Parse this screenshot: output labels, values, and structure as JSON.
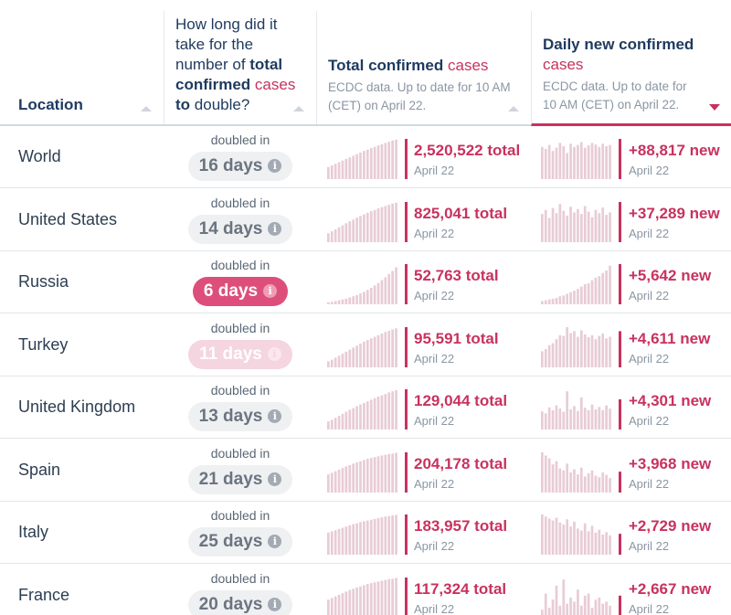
{
  "header": {
    "location": "Location",
    "doubling_pre": "How long did it take for the number of ",
    "doubling_bold1": "total confirmed",
    "doubling_pink": "cases",
    "doubling_bold2": "to",
    "doubling_post": "double?",
    "total_title": "Total confirmed",
    "total_title_pink": "cases",
    "total_sub": "ECDC data. Up to date for 10 AM (CET) on April 22.",
    "daily_title": "Daily new confirmed",
    "daily_title_pink": "cases",
    "daily_sub": "ECDC data. Up to date for 10 AM (CET) on April 22."
  },
  "doubled_label": "doubled in",
  "info_glyph": "i",
  "colors": {
    "accent": "#c8325f",
    "bar": "#e8ccd5",
    "bar_last": "#c8325f"
  },
  "rows": [
    {
      "location": "World",
      "doubling": "16 days",
      "severity": "normal",
      "total": "2,520,522 total",
      "total_date": "April 22",
      "daily": "+88,817 new",
      "daily_date": "April 22",
      "total_trend": [
        0.3,
        0.34,
        0.38,
        0.42,
        0.46,
        0.5,
        0.54,
        0.58,
        0.62,
        0.66,
        0.7,
        0.73,
        0.77,
        0.8,
        0.84,
        0.87,
        0.9,
        0.93,
        0.96,
        0.98,
        1.0
      ],
      "daily_trend": [
        0.8,
        0.75,
        0.85,
        0.7,
        0.78,
        0.9,
        0.82,
        0.65,
        0.88,
        0.8,
        0.85,
        0.92,
        0.78,
        0.84,
        0.9,
        0.86,
        0.8,
        0.88,
        0.82,
        0.85,
        1.0
      ]
    },
    {
      "location": "United States",
      "doubling": "14 days",
      "severity": "normal",
      "total": "825,041 total",
      "total_date": "April 22",
      "daily": "+37,289 new",
      "daily_date": "April 22",
      "total_trend": [
        0.22,
        0.27,
        0.32,
        0.37,
        0.42,
        0.47,
        0.52,
        0.56,
        0.61,
        0.65,
        0.69,
        0.73,
        0.77,
        0.8,
        0.84,
        0.87,
        0.9,
        0.93,
        0.96,
        0.98,
        1.0
      ],
      "daily_trend": [
        0.7,
        0.8,
        0.6,
        0.85,
        0.72,
        0.95,
        0.78,
        0.66,
        0.88,
        0.74,
        0.82,
        0.7,
        0.9,
        0.76,
        0.62,
        0.8,
        0.72,
        0.86,
        0.68,
        0.74,
        1.0
      ]
    },
    {
      "location": "Russia",
      "doubling": "6 days",
      "severity": "hot",
      "total": "52,763 total",
      "total_date": "April 22",
      "daily": "+5,642 new",
      "daily_date": "April 22",
      "total_trend": [
        0.05,
        0.06,
        0.08,
        0.1,
        0.12,
        0.14,
        0.17,
        0.2,
        0.23,
        0.27,
        0.31,
        0.36,
        0.41,
        0.47,
        0.53,
        0.6,
        0.67,
        0.75,
        0.83,
        0.92,
        1.0
      ],
      "daily_trend": [
        0.08,
        0.1,
        0.12,
        0.14,
        0.16,
        0.2,
        0.22,
        0.26,
        0.3,
        0.34,
        0.38,
        0.44,
        0.5,
        0.52,
        0.6,
        0.66,
        0.7,
        0.78,
        0.84,
        0.96,
        1.0
      ]
    },
    {
      "location": "Turkey",
      "doubling": "11 days",
      "severity": "warm",
      "total": "95,591 total",
      "total_date": "April 22",
      "daily": "+4,611 new",
      "daily_date": "April 22",
      "total_trend": [
        0.15,
        0.19,
        0.24,
        0.29,
        0.34,
        0.39,
        0.44,
        0.49,
        0.54,
        0.59,
        0.64,
        0.68,
        0.72,
        0.76,
        0.8,
        0.84,
        0.88,
        0.91,
        0.94,
        0.97,
        1.0
      ],
      "daily_trend": [
        0.4,
        0.45,
        0.55,
        0.6,
        0.7,
        0.8,
        0.78,
        1.0,
        0.85,
        0.9,
        0.76,
        0.92,
        0.82,
        0.75,
        0.8,
        0.7,
        0.78,
        0.84,
        0.72,
        0.76,
        0.9
      ]
    },
    {
      "location": "United Kingdom",
      "doubling": "13 days",
      "severity": "normal",
      "total": "129,044 total",
      "total_date": "April 22",
      "daily": "+4,301 new",
      "daily_date": "April 22",
      "total_trend": [
        0.2,
        0.24,
        0.29,
        0.34,
        0.39,
        0.44,
        0.49,
        0.53,
        0.58,
        0.62,
        0.66,
        0.7,
        0.74,
        0.78,
        0.82,
        0.85,
        0.88,
        0.92,
        0.95,
        0.98,
        1.0
      ],
      "daily_trend": [
        0.45,
        0.4,
        0.55,
        0.48,
        0.6,
        0.52,
        0.44,
        0.95,
        0.5,
        0.58,
        0.46,
        0.8,
        0.54,
        0.48,
        0.62,
        0.5,
        0.56,
        0.48,
        0.6,
        0.52,
        0.75
      ]
    },
    {
      "location": "Spain",
      "doubling": "21 days",
      "severity": "normal",
      "total": "204,178 total",
      "total_date": "April 22",
      "daily": "+3,968 new",
      "daily_date": "April 22",
      "total_trend": [
        0.45,
        0.49,
        0.53,
        0.57,
        0.61,
        0.65,
        0.68,
        0.72,
        0.75,
        0.78,
        0.81,
        0.84,
        0.86,
        0.88,
        0.9,
        0.92,
        0.94,
        0.96,
        0.97,
        0.99,
        1.0
      ],
      "daily_trend": [
        1.0,
        0.92,
        0.85,
        0.7,
        0.78,
        0.6,
        0.55,
        0.72,
        0.5,
        0.58,
        0.45,
        0.62,
        0.4,
        0.48,
        0.55,
        0.42,
        0.38,
        0.5,
        0.44,
        0.36,
        0.52
      ]
    },
    {
      "location": "Italy",
      "doubling": "25 days",
      "severity": "normal",
      "total": "183,957 total",
      "total_date": "April 22",
      "daily": "+2,729 new",
      "daily_date": "April 22",
      "total_trend": [
        0.55,
        0.58,
        0.61,
        0.64,
        0.67,
        0.7,
        0.73,
        0.76,
        0.78,
        0.81,
        0.83,
        0.85,
        0.87,
        0.89,
        0.91,
        0.93,
        0.95,
        0.96,
        0.98,
        0.99,
        1.0
      ],
      "daily_trend": [
        1.0,
        0.95,
        0.9,
        0.85,
        0.92,
        0.8,
        0.75,
        0.88,
        0.7,
        0.82,
        0.65,
        0.6,
        0.78,
        0.58,
        0.72,
        0.55,
        0.62,
        0.5,
        0.56,
        0.48,
        0.52
      ]
    },
    {
      "location": "France",
      "doubling": "20 days",
      "severity": "normal",
      "total": "117,324 total",
      "total_date": "April 22",
      "daily": "+2,667 new",
      "daily_date": "April 22",
      "total_trend": [
        0.45,
        0.49,
        0.53,
        0.57,
        0.61,
        0.65,
        0.69,
        0.72,
        0.75,
        0.78,
        0.81,
        0.84,
        0.86,
        0.88,
        0.9,
        0.92,
        0.94,
        0.96,
        0.97,
        0.99,
        1.0
      ],
      "daily_trend": [
        0.2,
        0.6,
        0.25,
        0.45,
        0.8,
        0.3,
        0.95,
        0.35,
        0.5,
        0.4,
        0.7,
        0.3,
        0.55,
        0.6,
        0.25,
        0.45,
        0.5,
        0.35,
        0.4,
        0.3,
        0.55
      ]
    }
  ]
}
